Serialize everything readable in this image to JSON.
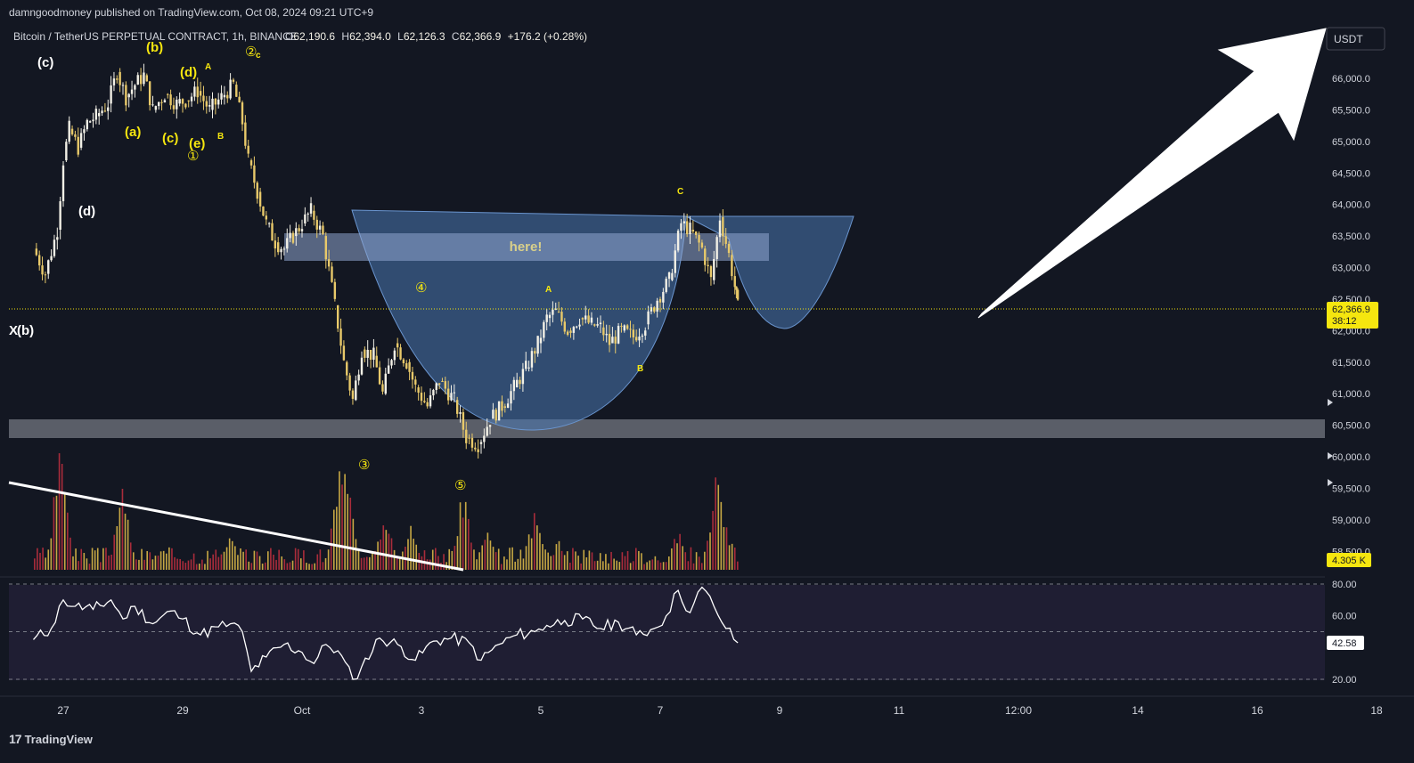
{
  "header": {
    "publisher": "damngoodmoney published on TradingView.com, Oct 08, 2024 09:21 UTC+9"
  },
  "legend": {
    "symbol": "Bitcoin / TetherUS PERPETUAL CONTRACT, 1h, BINANCE",
    "open_label": "O",
    "open": "62,190.6",
    "high_label": "H",
    "high": "62,394.0",
    "low_label": "L",
    "low": "62,126.3",
    "close_label": "C",
    "close": "62,366.9",
    "change": "+176.2 (+0.28%)"
  },
  "currency_button": "USDT",
  "footer": {
    "logo_text": "TradingView"
  },
  "price_badge": {
    "price": "62,366.9",
    "countdown": "38:12",
    "color": "#f5e60f"
  },
  "volume_badge": {
    "value": "4.305 K",
    "color": "#f5e60f"
  },
  "rsi_badge": {
    "value": "42.58"
  },
  "colors": {
    "background": "#131722",
    "up_candle": "#f2f0e6",
    "down_candle": "#e8c96a",
    "vol_up": "#e8c24a",
    "vol_down": "#c4303f",
    "annotation_yellow": "#f5e60f",
    "cup_fill": "#4a78b3",
    "rsi_line": "#ffffff"
  },
  "annotations": {
    "here_label": "here!",
    "waves": [
      "(c)",
      "(b)",
      "(d)",
      "A",
      "②",
      "c",
      "(a)",
      "(c)",
      "(e)",
      "B",
      "①",
      "(d)",
      "X",
      "(b)",
      "④",
      "A",
      "C",
      "B",
      "③",
      "⑤"
    ]
  },
  "chart_data": [
    {
      "type": "candlestick",
      "title": "",
      "x_ticks": [
        "27",
        "29",
        "Oct",
        "3",
        "5",
        "7",
        "9",
        "11",
        "12:00",
        "14",
        "16",
        "18"
      ],
      "y_ticks": [
        "66,000.0",
        "65,500.0",
        "65,000.0",
        "64,500.0",
        "64,000.0",
        "63,500.0",
        "63,000.0",
        "62,500.0",
        "62,000.0",
        "61,500.0",
        "61,000.0",
        "60,500.0",
        "60,000.0",
        "59,500.0",
        "59,000.0",
        "58,500.0"
      ],
      "ylim": [
        58400,
        66700
      ],
      "price_path": [
        [
          26.5,
          63300
        ],
        [
          26.7,
          62900
        ],
        [
          26.9,
          63600
        ],
        [
          27.0,
          64700
        ],
        [
          27.1,
          65200
        ],
        [
          27.25,
          64900
        ],
        [
          27.4,
          65300
        ],
        [
          27.55,
          65400
        ],
        [
          27.75,
          65600
        ],
        [
          27.9,
          66100
        ],
        [
          28.05,
          65700
        ],
        [
          28.2,
          65900
        ],
        [
          28.35,
          66050
        ],
        [
          28.5,
          65500
        ],
        [
          28.7,
          65750
        ],
        [
          28.9,
          65600
        ],
        [
          29.05,
          65650
        ],
        [
          29.25,
          65800
        ],
        [
          29.45,
          65500
        ],
        [
          29.65,
          65700
        ],
        [
          29.85,
          65900
        ],
        [
          30.0,
          65300
        ],
        [
          30.1,
          64700
        ],
        [
          30.25,
          64200
        ],
        [
          30.4,
          63700
        ],
        [
          30.55,
          63400
        ],
        [
          30.7,
          63300
        ],
        [
          30.85,
          63500
        ],
        [
          31.0,
          63700
        ],
        [
          31.15,
          63900
        ],
        [
          31.35,
          63500
        ],
        [
          31.55,
          62400
        ],
        [
          31.7,
          61500
        ],
        [
          31.85,
          60900
        ],
        [
          32.0,
          61700
        ],
        [
          32.2,
          61600
        ],
        [
          32.35,
          61000
        ],
        [
          32.55,
          61800
        ],
        [
          32.75,
          61500
        ],
        [
          32.9,
          61100
        ],
        [
          33.1,
          60800
        ],
        [
          33.3,
          61200
        ],
        [
          33.55,
          60900
        ],
        [
          33.75,
          60300
        ],
        [
          33.95,
          60200
        ],
        [
          34.15,
          60600
        ],
        [
          34.35,
          60800
        ],
        [
          34.55,
          61100
        ],
        [
          34.75,
          61400
        ],
        [
          34.95,
          61800
        ],
        [
          35.1,
          62200
        ],
        [
          35.25,
          62300
        ],
        [
          35.45,
          62000
        ],
        [
          35.65,
          62200
        ],
        [
          35.85,
          62100
        ],
        [
          36.0,
          62050
        ],
        [
          36.15,
          61800
        ],
        [
          36.35,
          62000
        ],
        [
          36.55,
          61900
        ],
        [
          36.75,
          62100
        ],
        [
          36.95,
          62500
        ],
        [
          37.15,
          62800
        ],
        [
          37.35,
          63700
        ],
        [
          37.5,
          63600
        ],
        [
          37.7,
          63300
        ],
        [
          37.85,
          62800
        ],
        [
          38.0,
          63800
        ],
        [
          38.15,
          63200
        ],
        [
          38.25,
          62700
        ],
        [
          38.3,
          62367
        ]
      ],
      "volume_ylim": [
        0,
        1
      ],
      "volume_spikes": [
        [
          26.95,
          0.95
        ],
        [
          28.0,
          0.6
        ],
        [
          29.8,
          0.25
        ],
        [
          31.65,
          0.95
        ],
        [
          31.75,
          0.9
        ],
        [
          32.4,
          0.42
        ],
        [
          32.8,
          0.35
        ],
        [
          33.7,
          0.62
        ],
        [
          34.1,
          0.28
        ],
        [
          34.9,
          0.42
        ],
        [
          35.3,
          0.22
        ],
        [
          37.3,
          0.3
        ],
        [
          37.95,
          0.74
        ],
        [
          38.1,
          0.35
        ]
      ]
    },
    {
      "type": "line",
      "title": "",
      "y_ticks": [
        "80.00",
        "60.00",
        "20.00"
      ],
      "ylim": [
        16,
        86
      ],
      "bands": [
        70,
        30
      ],
      "x": [
        26.5,
        26.8,
        27.0,
        27.2,
        27.5,
        27.8,
        28.0,
        28.2,
        28.5,
        28.8,
        29.0,
        29.3,
        29.6,
        29.8,
        30.0,
        30.15,
        30.4,
        30.7,
        31.0,
        31.2,
        31.4,
        31.6,
        31.85,
        32.0,
        32.3,
        32.6,
        32.9,
        33.2,
        33.5,
        33.8,
        34.0,
        34.3,
        34.6,
        34.9,
        35.1,
        35.4,
        35.7,
        36.0,
        36.3,
        36.6,
        36.9,
        37.1,
        37.3,
        37.5,
        37.7,
        37.9,
        38.1,
        38.3
      ],
      "y": [
        45,
        52,
        70,
        66,
        64,
        70,
        58,
        66,
        55,
        63,
        58,
        48,
        53,
        55,
        50,
        25,
        34,
        42,
        37,
        30,
        42,
        38,
        20,
        28,
        46,
        42,
        32,
        44,
        46,
        43,
        32,
        42,
        48,
        50,
        54,
        57,
        58,
        52,
        56,
        48,
        52,
        60,
        76,
        62,
        78,
        66,
        52,
        43
      ]
    }
  ]
}
